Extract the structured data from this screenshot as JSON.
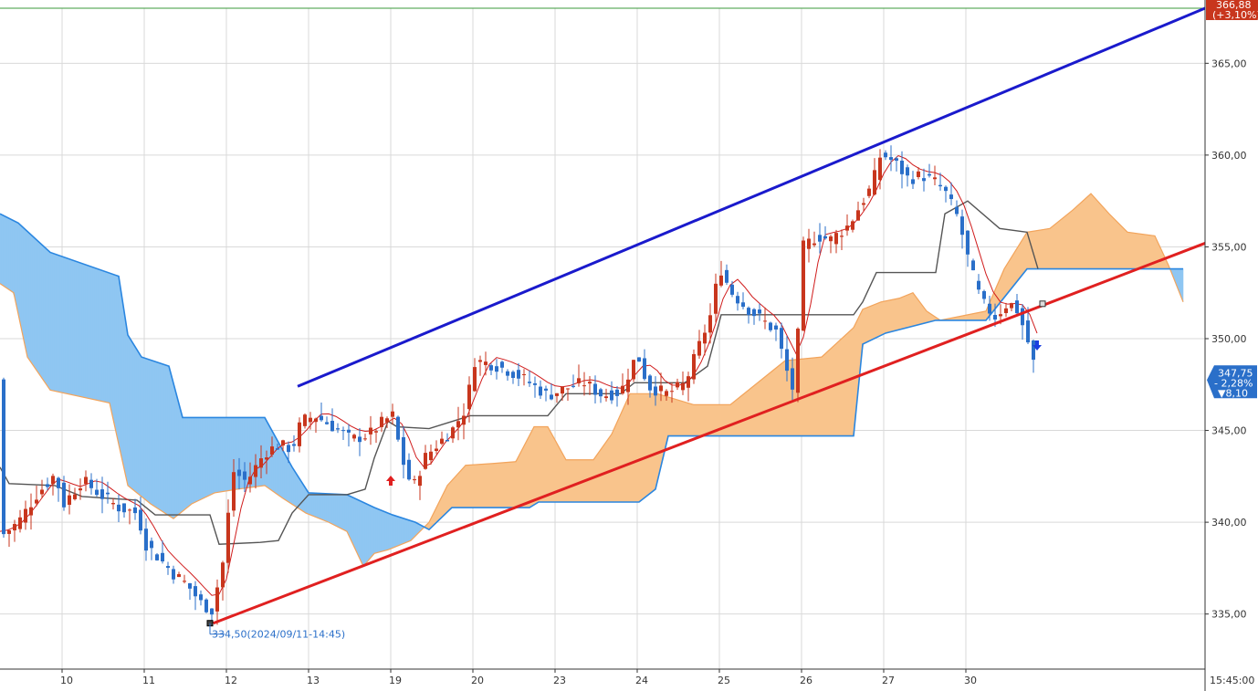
{
  "chart_data": {
    "type": "line",
    "title": "",
    "xlabel": "",
    "ylabel": "",
    "ylim": [
      332.0,
      368.0
    ],
    "grid": true,
    "x_tick_labels": [
      "10",
      "11",
      "12",
      "13",
      "19",
      "20",
      "23",
      "24",
      "25",
      "26",
      "27",
      "30"
    ],
    "time_label": "15:45:00",
    "y_ticks": [
      335,
      340,
      345,
      350,
      355,
      360,
      365
    ],
    "y_tick_labels": [
      "335,00",
      "340,00",
      "345,00",
      "350,00",
      "355,00",
      "360,00",
      "365,00"
    ],
    "top_tag": {
      "value": "366,88",
      "change": "(+3,10%)"
    },
    "current_tag": {
      "price": "347,75",
      "change_pct": "- 2,28%",
      "change_abs": "▼8,10",
      "value": 347.75
    },
    "low_annotation": {
      "text": "334,50(2024/09/11-14:45)",
      "value": 334.5
    },
    "horizontal_line": {
      "value": 368.0
    },
    "trendlines": [
      {
        "name": "upper-channel",
        "color": "#1a1acc",
        "from": {
          "x": 0.247,
          "y": 347.4
        },
        "to": {
          "x": 1.0,
          "y": 368.0
        }
      },
      {
        "name": "lower-channel",
        "color": "#e02020",
        "from": {
          "x": 0.177,
          "y": 334.5
        },
        "to": {
          "x": 1.0,
          "y": 355.2
        }
      }
    ],
    "colors": {
      "up": "#c8361d",
      "down": "#2a6fc9",
      "kumo_bullish": "#f9c48c",
      "kumo_bearish": "#8fc6f2",
      "grid": "#d9d9d9",
      "frame_line": "#3b9a3b"
    }
  },
  "markers": {
    "buy_arrow": "up-arrow-icon",
    "sell_arrow": "down-arrow-icon"
  }
}
